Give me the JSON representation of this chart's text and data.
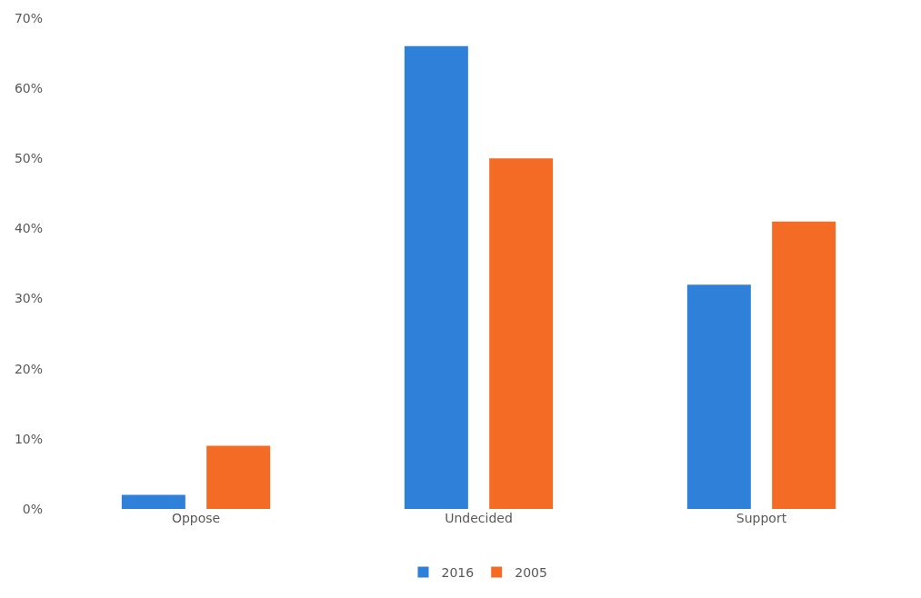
{
  "chart_data": {
    "type": "bar",
    "categories": [
      "Oppose",
      "Undecided",
      "Support"
    ],
    "series": [
      {
        "name": "2016",
        "color": "#2f80d8",
        "values": [
          2,
          66,
          32
        ]
      },
      {
        "name": "2005",
        "color": "#f46b25",
        "values": [
          9,
          50,
          41
        ]
      }
    ],
    "ylim": [
      0,
      70
    ],
    "yticks": [
      {
        "value": 0,
        "label": "0%"
      },
      {
        "value": 10,
        "label": "10%"
      },
      {
        "value": 20,
        "label": "20%"
      },
      {
        "value": 30,
        "label": "30%"
      },
      {
        "value": 40,
        "label": "40%"
      },
      {
        "value": 50,
        "label": "50%"
      },
      {
        "value": 60,
        "label": "60%"
      },
      {
        "value": 70,
        "label": "70%"
      }
    ],
    "grid": false,
    "legend": "bottom"
  }
}
